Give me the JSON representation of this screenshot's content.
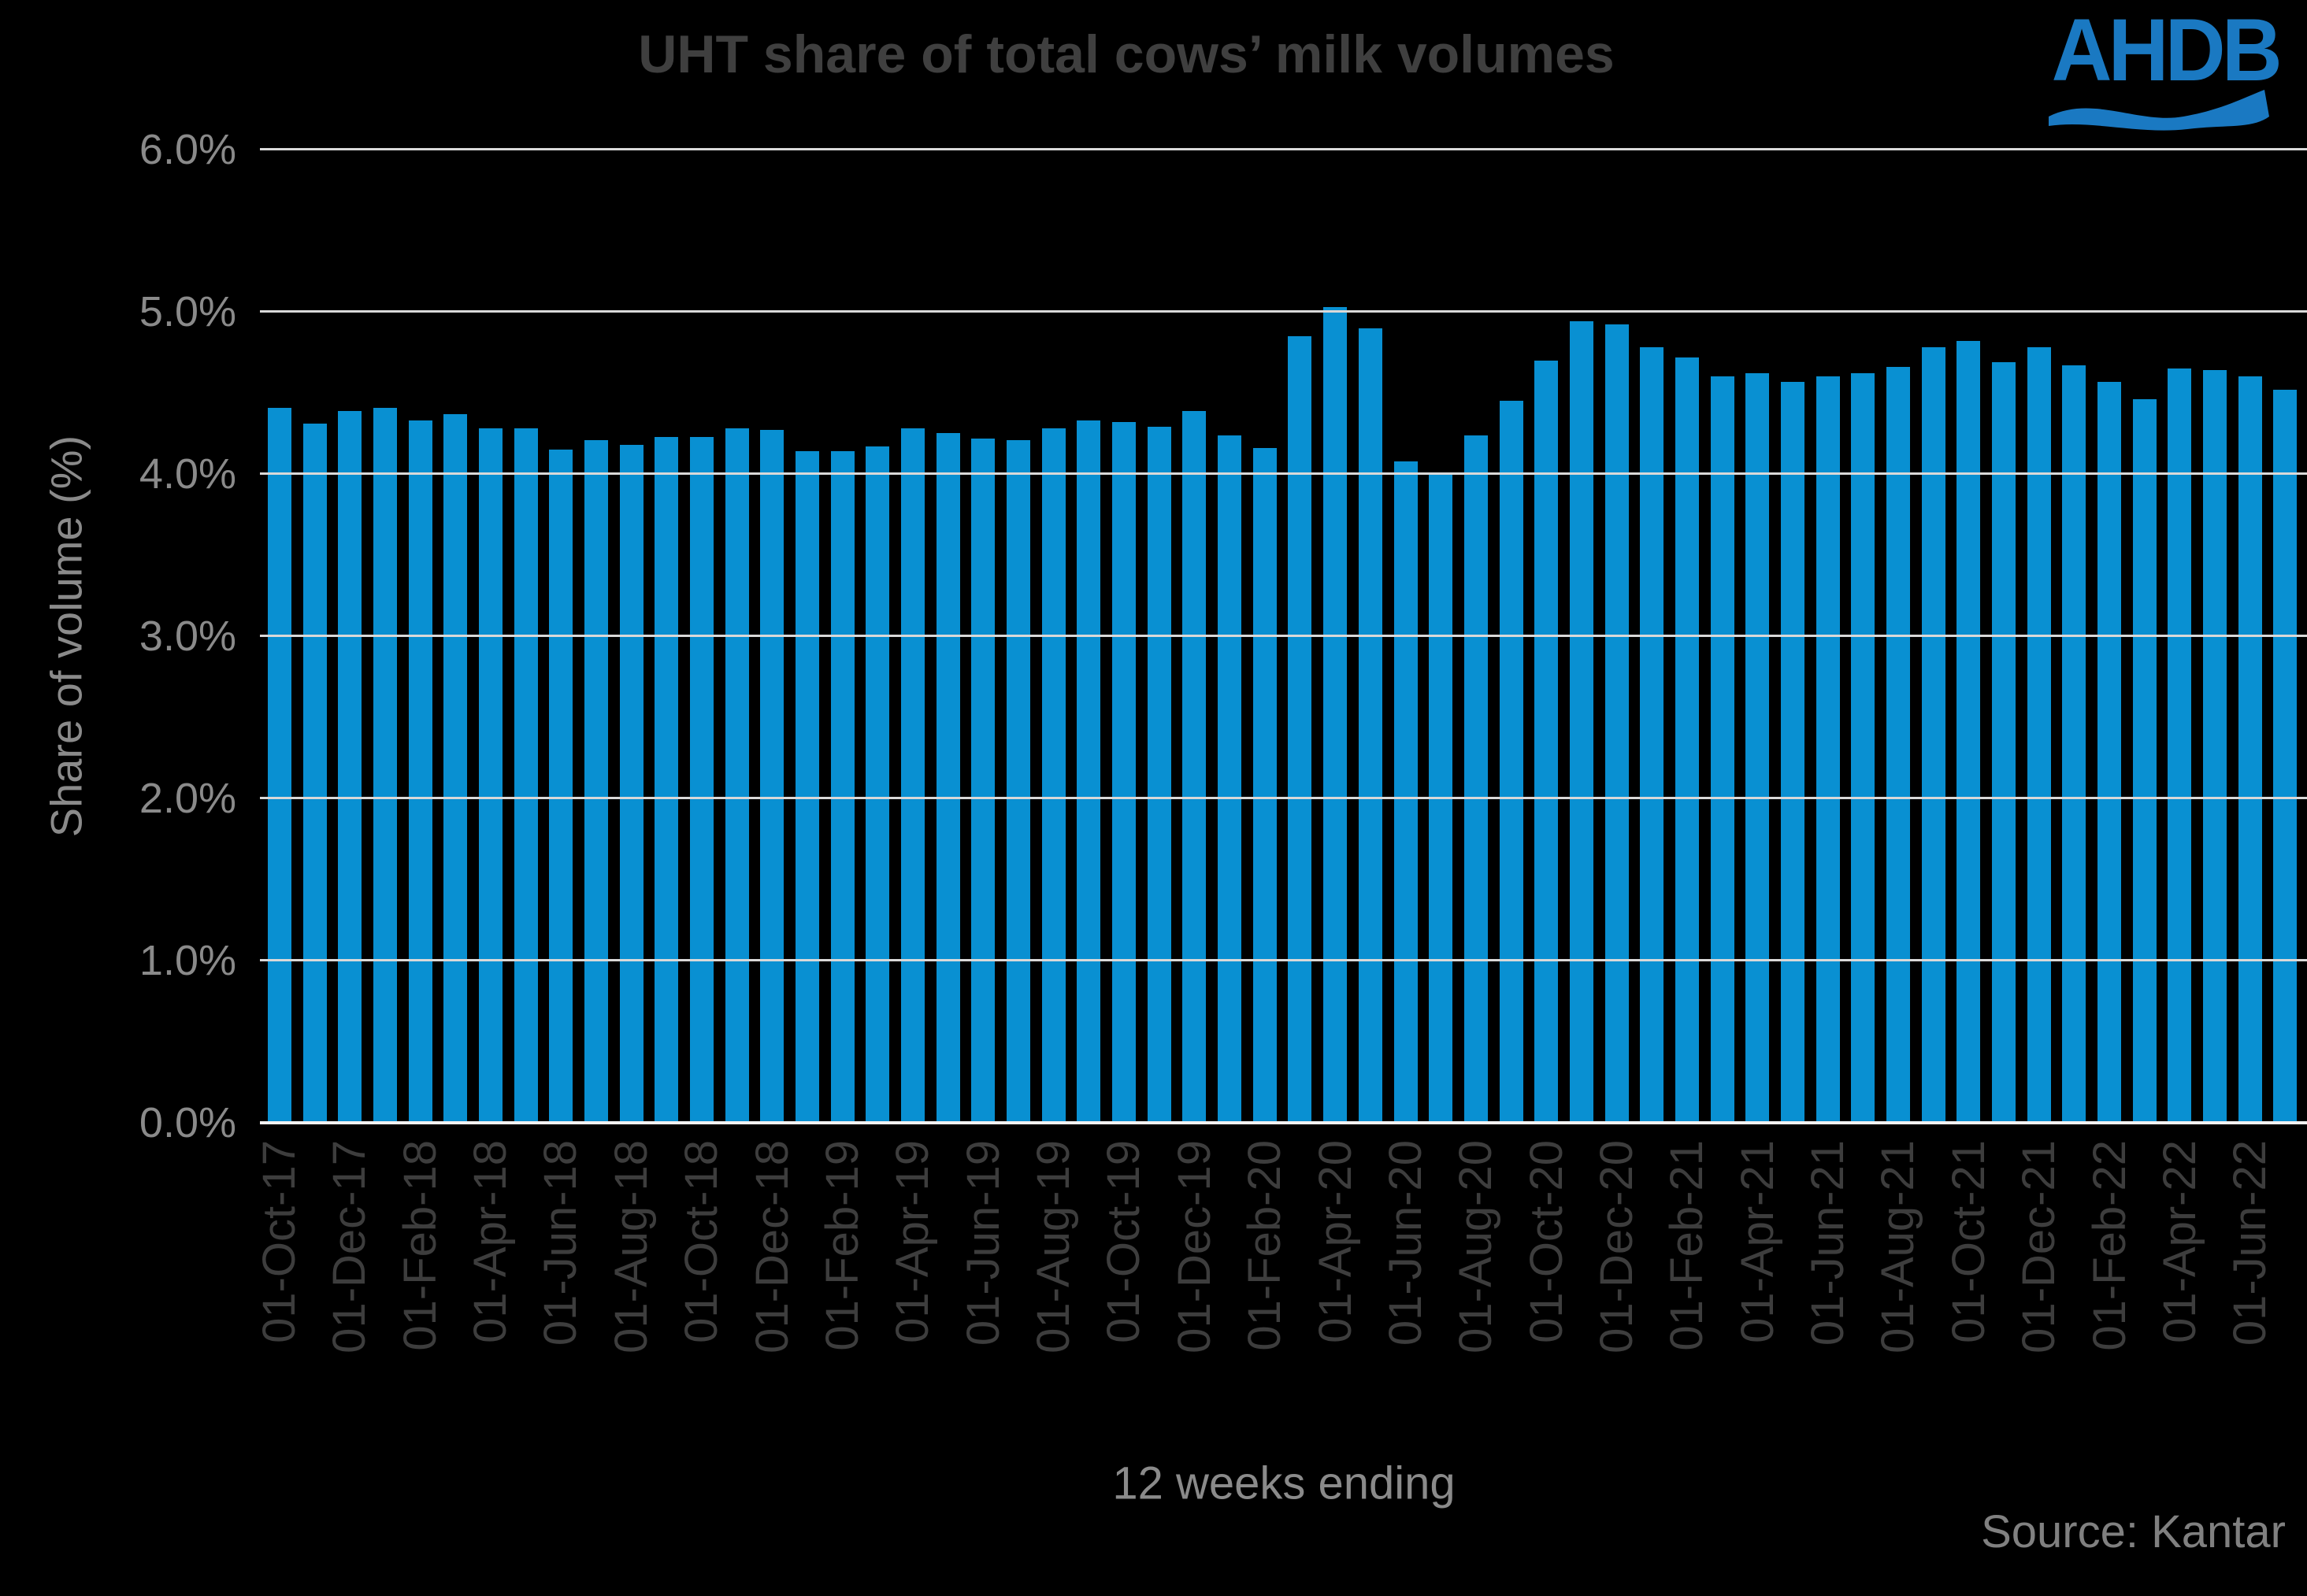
{
  "title": "UHT share of total cows’ milk volumes",
  "logo": {
    "name": "AHDB",
    "color": "#1A79C2"
  },
  "source": "Source: Kantar",
  "colors": {
    "background": "#000000",
    "bar": "#0990D2",
    "gridline": "#D9D9D9",
    "axis_line": "#F2F2F2",
    "title_text": "#3F3F3F",
    "x_tick_text": "#3D3D3D",
    "y_tick_text": "#8A8A8A"
  },
  "chart_data": {
    "type": "bar",
    "title": "UHT share of total cows’ milk volumes",
    "xlabel": "12 weeks ending",
    "ylabel": "Share of volume (%)",
    "ylim": [
      0,
      6
    ],
    "ytick_step": 1,
    "ytick_labels": [
      "6.0%",
      "5.0%",
      "4.0%",
      "3.0%",
      "2.0%",
      "1.0%",
      "0.0%"
    ],
    "grid": "horizontal, drawn over bars",
    "legend": "none",
    "bar_color": "#0990D2",
    "x_label_every": 2,
    "x_tick_labels": [
      "01-Oct-17",
      "01-Dec-17",
      "01-Feb-18",
      "01-Apr-18",
      "01-Jun-18",
      "01-Aug-18",
      "01-Oct-18",
      "01-Dec-18",
      "01-Feb-19",
      "01-Apr-19",
      "01-Jun-19",
      "01-Aug-19",
      "01-Oct-19",
      "01-Dec-19",
      "01-Feb-20",
      "01-Apr-20",
      "01-Jun-20",
      "01-Aug-20",
      "01-Oct-20",
      "01-Dec-20",
      "01-Feb-21",
      "01-Apr-21",
      "01-Jun-21",
      "01-Aug-21",
      "01-Oct-21",
      "01-Dec-21",
      "01-Feb-22",
      "01-Apr-22",
      "01-Jun-22"
    ],
    "values": [
      4.41,
      4.31,
      4.39,
      4.41,
      4.33,
      4.37,
      4.28,
      4.28,
      4.15,
      4.21,
      4.18,
      4.23,
      4.23,
      4.28,
      4.27,
      4.14,
      4.14,
      4.17,
      4.28,
      4.25,
      4.22,
      4.21,
      4.28,
      4.33,
      4.32,
      4.29,
      4.39,
      4.24,
      4.16,
      4.85,
      5.03,
      4.9,
      4.08,
      4.01,
      4.24,
      4.45,
      4.7,
      4.94,
      4.92,
      4.78,
      4.72,
      4.6,
      4.62,
      4.57,
      4.6,
      4.62,
      4.66,
      4.78,
      4.82,
      4.69,
      4.78,
      4.67,
      4.57,
      4.46,
      4.65,
      4.64,
      4.6,
      4.52
    ]
  }
}
